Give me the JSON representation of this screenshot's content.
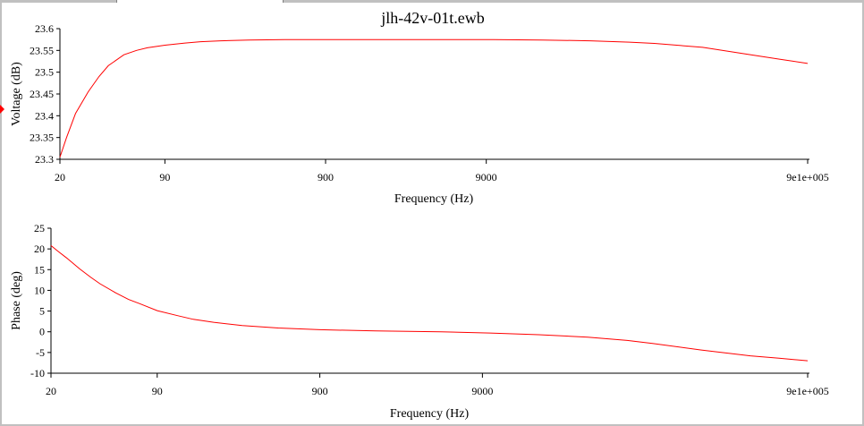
{
  "window_title": "jlh-42v-01t.ewb",
  "chart_data": [
    {
      "type": "line",
      "title": "jlh-42v-01t.ewb",
      "xlabel": "Frequency (Hz)",
      "ylabel": "Voltage (dB)",
      "xscale": "log",
      "xlim": [
        20,
        900000
      ],
      "ylim": [
        23.3,
        23.6
      ],
      "x_ticks": [
        20,
        90,
        900,
        9000,
        900000
      ],
      "x_tick_labels": [
        "20",
        "90",
        "900",
        "9000",
        "9e1e+005"
      ],
      "y_ticks": [
        23.3,
        23.35,
        23.4,
        23.45,
        23.5,
        23.55,
        23.6
      ],
      "y_tick_labels": [
        "23.3",
        "23.35",
        "23.4",
        "23.45",
        "23.5",
        "23.55",
        "23.6"
      ],
      "grid": false,
      "color": "#ff0000",
      "series": [
        {
          "x": [
            20,
            22,
            25,
            30,
            35,
            40,
            50,
            60,
            70,
            90,
            120,
            150,
            200,
            300,
            500,
            900,
            2000,
            5000,
            10000,
            20000,
            40000,
            70000,
            100000,
            200000,
            400000,
            600000,
            900000
          ],
          "y": [
            23.305,
            23.35,
            23.405,
            23.455,
            23.49,
            23.515,
            23.54,
            23.55,
            23.556,
            23.562,
            23.567,
            23.57,
            23.572,
            23.574,
            23.575,
            23.575,
            23.575,
            23.575,
            23.575,
            23.574,
            23.572,
            23.569,
            23.566,
            23.557,
            23.54,
            23.53,
            23.52
          ]
        }
      ]
    },
    {
      "type": "line",
      "title": "",
      "xlabel": "Frequency (Hz)",
      "ylabel": "Phase (deg)",
      "xscale": "log",
      "xlim": [
        20,
        900000
      ],
      "ylim": [
        -10,
        25
      ],
      "x_ticks": [
        20,
        90,
        900,
        9000,
        900000
      ],
      "x_tick_labels": [
        "20",
        "90",
        "900",
        "9000",
        "9e1e+005"
      ],
      "y_ticks": [
        -10,
        -5,
        0,
        5,
        10,
        15,
        20,
        25
      ],
      "y_tick_labels": [
        "-10",
        "-5",
        "0",
        "5",
        "10",
        "15",
        "20",
        "25"
      ],
      "grid": false,
      "color": "#ff0000",
      "series": [
        {
          "x": [
            20,
            22,
            25,
            30,
            35,
            40,
            50,
            60,
            70,
            90,
            120,
            150,
            200,
            300,
            500,
            900,
            2000,
            5000,
            10000,
            20000,
            40000,
            70000,
            100000,
            200000,
            400000,
            600000,
            900000
          ],
          "y": [
            20.8,
            19.5,
            17.8,
            15.2,
            13.2,
            11.6,
            9.4,
            7.8,
            6.8,
            5.1,
            3.9,
            3.0,
            2.3,
            1.5,
            0.9,
            0.5,
            0.2,
            0.0,
            -0.3,
            -0.7,
            -1.3,
            -2.1,
            -2.8,
            -4.4,
            -5.8,
            -6.4,
            -7.0
          ]
        }
      ]
    }
  ]
}
